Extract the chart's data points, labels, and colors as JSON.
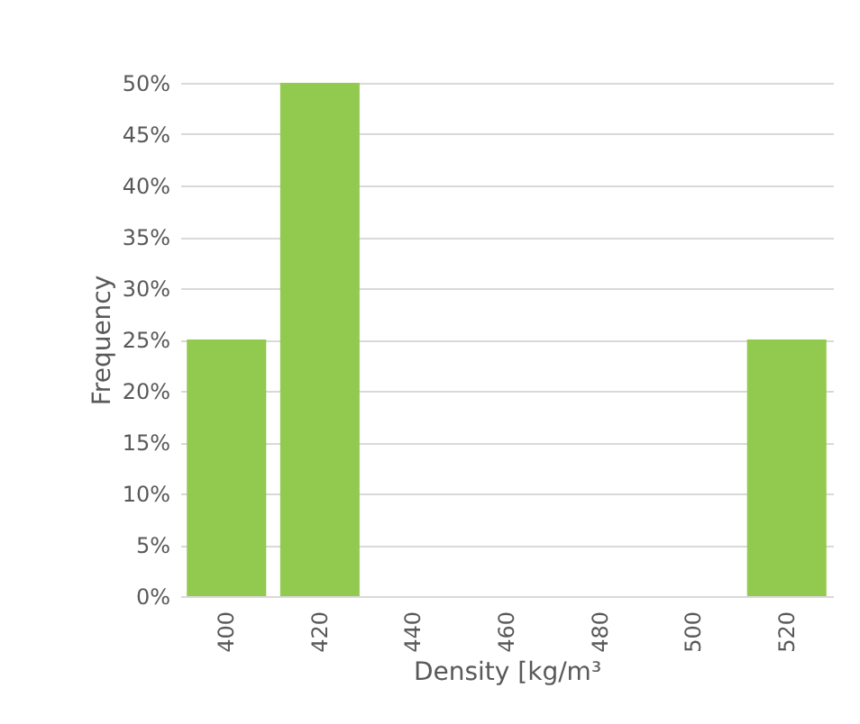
{
  "chart_data": {
    "type": "bar",
    "xlabel": "Density [kg/m³",
    "ylabel": "Frequency",
    "categories": [
      "400",
      "420",
      "440",
      "460",
      "480",
      "500",
      "520"
    ],
    "values": [
      25,
      50,
      0,
      0,
      0,
      0,
      25
    ],
    "color": "#92c94f",
    "ylim": [
      0,
      50
    ],
    "yticks": [
      {
        "value": 0,
        "label": "0%"
      },
      {
        "value": 5,
        "label": "5%"
      },
      {
        "value": 10,
        "label": "10%"
      },
      {
        "value": 15,
        "label": "15%"
      },
      {
        "value": 20,
        "label": "20%"
      },
      {
        "value": 25,
        "label": "25%"
      },
      {
        "value": 30,
        "label": "30%"
      },
      {
        "value": 35,
        "label": "35%"
      },
      {
        "value": 40,
        "label": "40%"
      },
      {
        "value": 45,
        "label": "45%"
      },
      {
        "value": 50,
        "label": "50%"
      }
    ],
    "grid": "y"
  }
}
